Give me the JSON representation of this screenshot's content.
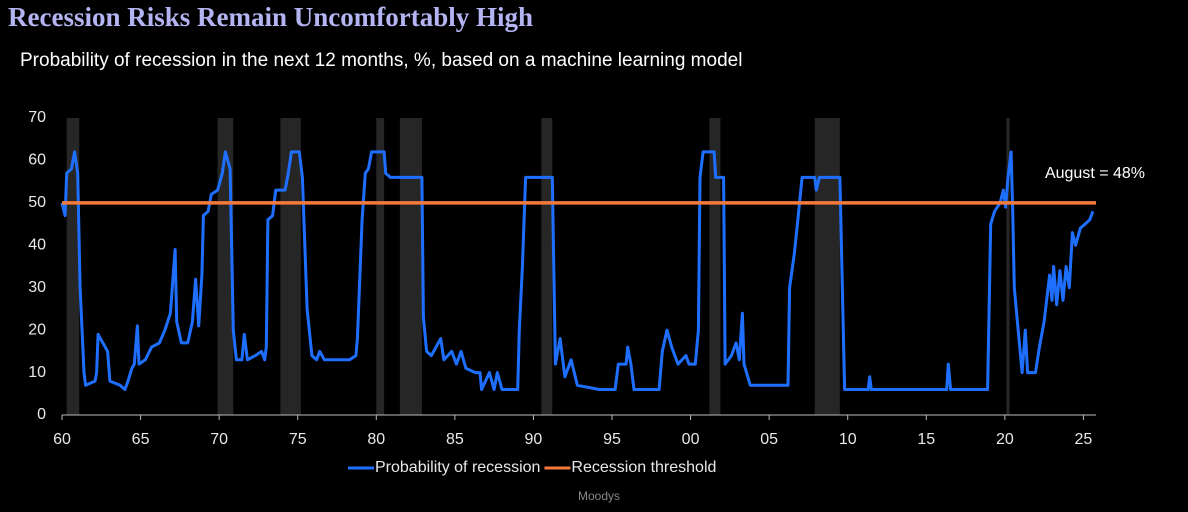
{
  "chart_data": {
    "type": "line",
    "title": "Recession Risks Remain Uncomfortably High",
    "subtitle": "Probability of recession in the next 12 months, %, based on a machine learning model",
    "annotation": "August = 48%",
    "source": "Moodys",
    "xlim": [
      1960,
      2025.8
    ],
    "xticks": [
      {
        "value": 1960,
        "label": "60"
      },
      {
        "value": 1965,
        "label": "65"
      },
      {
        "value": 1970,
        "label": "70"
      },
      {
        "value": 1975,
        "label": "75"
      },
      {
        "value": 1980,
        "label": "80"
      },
      {
        "value": 1985,
        "label": "85"
      },
      {
        "value": 1990,
        "label": "90"
      },
      {
        "value": 1995,
        "label": "95"
      },
      {
        "value": 2000,
        "label": "00"
      },
      {
        "value": 2005,
        "label": "05"
      },
      {
        "value": 2010,
        "label": "10"
      },
      {
        "value": 2015,
        "label": "15"
      },
      {
        "value": 2020,
        "label": "20"
      },
      {
        "value": 2025,
        "label": "25"
      }
    ],
    "ylim": [
      0,
      70
    ],
    "yticks": [
      0,
      10,
      20,
      30,
      40,
      50,
      60,
      70
    ],
    "recessions": [
      [
        1960.3,
        1961.1
      ],
      [
        1969.9,
        1970.9
      ],
      [
        1973.9,
        1975.2
      ],
      [
        1980.0,
        1980.5
      ],
      [
        1981.5,
        1982.9
      ],
      [
        1990.5,
        1991.2
      ],
      [
        2001.2,
        2001.9
      ],
      [
        2007.9,
        2009.5
      ],
      [
        2020.1,
        2020.3
      ]
    ],
    "series": [
      {
        "name": "Probability of recession",
        "color": "#1f6fff",
        "x": [
          1960.0,
          1960.2,
          1960.3,
          1960.6,
          1960.8,
          1961.0,
          1961.15,
          1961.4,
          1961.5,
          1962.1,
          1962.2,
          1962.3,
          1962.9,
          1963.05,
          1963.7,
          1964.0,
          1964.2,
          1964.45,
          1964.6,
          1964.8,
          1964.9,
          1965.3,
          1965.7,
          1966.2,
          1966.55,
          1966.9,
          1967.2,
          1967.3,
          1967.6,
          1968.0,
          1968.3,
          1968.5,
          1968.7,
          1968.9,
          1969.0,
          1969.3,
          1969.5,
          1969.9,
          1970.2,
          1970.4,
          1970.7,
          1970.9,
          1971.1,
          1971.45,
          1971.6,
          1971.8,
          1972.3,
          1972.7,
          1972.9,
          1973.0,
          1973.1,
          1973.4,
          1973.6,
          1974.2,
          1974.4,
          1974.6,
          1975.1,
          1975.3,
          1975.6,
          1975.9,
          1976.2,
          1976.4,
          1976.7,
          1978.3,
          1978.7,
          1978.8,
          1979.1,
          1979.3,
          1979.5,
          1979.7,
          1980.5,
          1980.6,
          1980.9,
          1982.9,
          1983.0,
          1983.2,
          1983.5,
          1984.1,
          1984.3,
          1984.8,
          1985.1,
          1985.4,
          1985.7,
          1986.3,
          1986.6,
          1986.7,
          1987.2,
          1987.5,
          1987.7,
          1988.0,
          1989.0,
          1989.1,
          1989.3,
          1989.5,
          1991.2,
          1991.4,
          1991.7,
          1992.0,
          1992.4,
          1992.8,
          1994.2,
          1995.2,
          1995.4,
          1995.9,
          1996.0,
          1996.2,
          1996.4,
          1998.0,
          1998.2,
          1998.5,
          1998.8,
          1999.2,
          1999.7,
          1999.9,
          2000.3,
          2000.5,
          2000.6,
          2000.8,
          2001.5,
          2001.6,
          2002.1,
          2002.2,
          2002.6,
          2002.9,
          2003.1,
          2003.3,
          2003.4,
          2003.8,
          2006.2,
          2006.3,
          2006.6,
          2006.8,
          2007.1,
          2007.9,
          2008.0,
          2008.2,
          2009.5,
          2009.8,
          2011.3,
          2011.4,
          2011.5,
          2016.3,
          2016.4,
          2016.55,
          2018.9,
          2019.1,
          2019.35,
          2019.7,
          2019.9,
          2020.05,
          2020.2,
          2020.4,
          2020.5,
          2020.6,
          2020.8,
          2021.1,
          2021.3,
          2021.45,
          2021.95,
          2022.2,
          2022.5,
          2022.85,
          2023.0,
          2023.1,
          2023.3,
          2023.5,
          2023.7,
          2023.9,
          2024.1,
          2024.3,
          2024.5,
          2024.8,
          2025.1,
          2025.4,
          2025.6
        ],
        "values": [
          50,
          47,
          57,
          58,
          62,
          57,
          30,
          10,
          7,
          8,
          10,
          19,
          15,
          8,
          7,
          6,
          8,
          11,
          12,
          21,
          12,
          13,
          16,
          17,
          20,
          24,
          39,
          22,
          17,
          17,
          22,
          32,
          21,
          33,
          47,
          48,
          52,
          53,
          57,
          62,
          58,
          20,
          13,
          13,
          19,
          13,
          14,
          15,
          13,
          16,
          46,
          47,
          53,
          53,
          57,
          62,
          62,
          56,
          25,
          14,
          13,
          15,
          13,
          13,
          14,
          18,
          46,
          57,
          58,
          62,
          62,
          57,
          56,
          56,
          23,
          15,
          14,
          18,
          13,
          15,
          12,
          15,
          11,
          10,
          10,
          6,
          10,
          6,
          10,
          6,
          6,
          20,
          35,
          56,
          56,
          12,
          18,
          9,
          13,
          7,
          6,
          6,
          12,
          12,
          16,
          12,
          6,
          6,
          15,
          20,
          16,
          12,
          14,
          12,
          12,
          20,
          56,
          62,
          62,
          56,
          56,
          12,
          14,
          17,
          13,
          24,
          12,
          7,
          7,
          30,
          38,
          45,
          56,
          56,
          53,
          56,
          56,
          6,
          6,
          9,
          6,
          6,
          12,
          6,
          6,
          45,
          48,
          50,
          53,
          49,
          56,
          62,
          48,
          30,
          22,
          10,
          20,
          10,
          10,
          16,
          22,
          33,
          27,
          35,
          26,
          34,
          27,
          35,
          30,
          43,
          40,
          44,
          45,
          46,
          48
        ]
      },
      {
        "name": "Recession threshold",
        "color": "#f4793b",
        "x": [
          1960,
          2025.8
        ],
        "values": [
          50,
          50
        ]
      }
    ]
  }
}
